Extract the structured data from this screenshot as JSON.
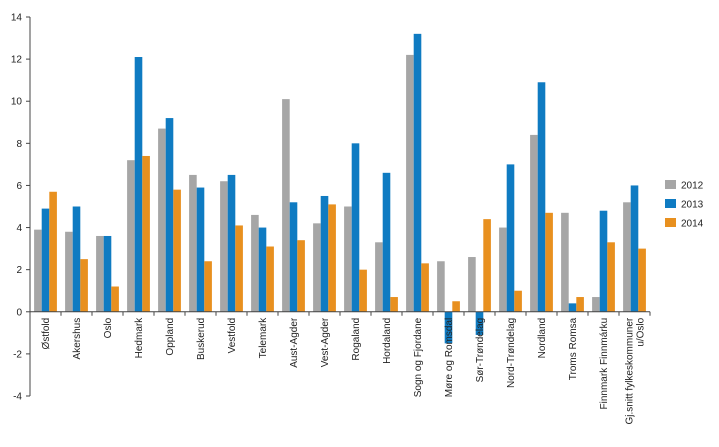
{
  "chart_data": {
    "type": "bar",
    "title": "",
    "xlabel": "",
    "ylabel": "",
    "ylim": [
      -4,
      14
    ],
    "yticks": [
      -4,
      -2,
      0,
      2,
      4,
      6,
      8,
      10,
      12,
      14
    ],
    "grid": false,
    "legend_position": "right",
    "categories": [
      "Østfold",
      "Akershus",
      "Oslo",
      "Hedmark",
      "Oppland",
      "Buskerud",
      "Vestfold",
      "Telemark",
      "Aust-Agder",
      "Vest-Agder",
      "Rogaland",
      "Hordaland",
      "Sogn og Fjordane",
      "Møre og Romsdal",
      "Sør-Trøndelag",
      "Nord-Trøndelag",
      "Nordland",
      "Troms Romsa",
      "Finnmark Finnmárku",
      [
        "Gj.snitt fylkeskommuner",
        "u/Oslo"
      ]
    ],
    "series": [
      {
        "name": "2012",
        "color": "#a6a6a6",
        "values": [
          3.9,
          3.8,
          3.6,
          7.2,
          8.7,
          6.5,
          6.2,
          4.6,
          10.1,
          4.2,
          5.0,
          3.3,
          12.2,
          2.4,
          2.6,
          4.0,
          8.4,
          4.7,
          0.7,
          5.2
        ]
      },
      {
        "name": "2013",
        "color": "#0f7bc2",
        "values": [
          4.9,
          5.0,
          3.6,
          12.1,
          9.2,
          5.9,
          6.5,
          4.0,
          5.2,
          5.5,
          8.0,
          6.6,
          13.2,
          -1.5,
          -1.1,
          7.0,
          10.9,
          0.4,
          4.8,
          6.0
        ]
      },
      {
        "name": "2014",
        "color": "#e8901f",
        "values": [
          5.7,
          2.5,
          1.2,
          7.4,
          5.8,
          2.4,
          4.1,
          3.1,
          3.4,
          5.1,
          2.0,
          0.7,
          2.3,
          0.5,
          4.4,
          1.0,
          4.7,
          0.7,
          3.3,
          3.0
        ]
      }
    ]
  }
}
